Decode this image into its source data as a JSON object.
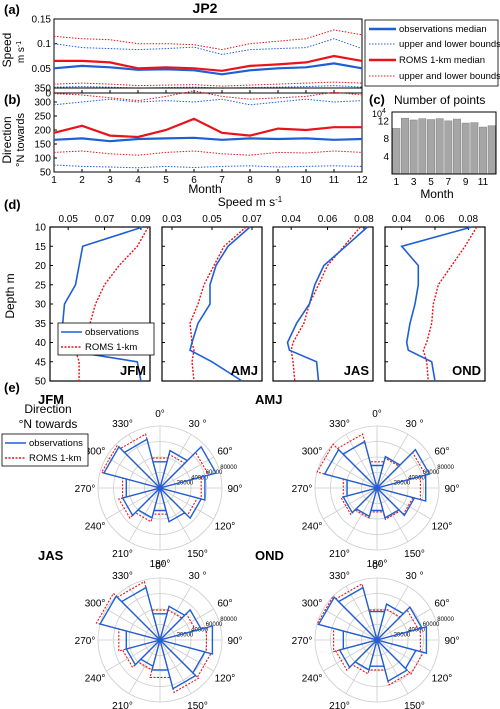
{
  "figure": {
    "title": "JP2",
    "panel_a": {
      "letter": "(a)",
      "ylabel": "Speed",
      "yunit": "m s",
      "yunit_exp": "-1",
      "legend": {
        "obs_median": "observations median",
        "obs_bounds": "upper and lower bounds",
        "roms_median": "ROMS 1-km median",
        "roms_bounds": "upper and lower bounds"
      }
    },
    "panel_b": {
      "letter": "(b)",
      "ylabel": "Direction",
      "ylabel2": "°N towards",
      "xlabel": "Month"
    },
    "panel_c": {
      "letter": "(c)",
      "title": "Number of points",
      "multiplier_base": "10",
      "multiplier_exp": "4",
      "xlabel": "Month"
    },
    "panel_d": {
      "letter": "(d)",
      "title": "Speed m s",
      "title_exp": "-1",
      "ylabel": "Depth m",
      "legend": {
        "obs": "observations",
        "roms": "ROMS 1-km"
      }
    },
    "panel_e": {
      "letter": "(e)",
      "title_line1": "Direction",
      "title_line2": "°N towards",
      "legend": {
        "obs": "observations",
        "roms": "ROMS 1-km"
      }
    }
  },
  "colors": {
    "observations": "#1f5fd6",
    "roms": "#e8141b",
    "bar": "#a6a6a6",
    "grid": "#cccccc"
  },
  "chart_data": [
    {
      "id": "panel-a",
      "type": "line",
      "x": [
        1,
        2,
        3,
        4,
        5,
        6,
        7,
        8,
        9,
        10,
        11,
        12
      ],
      "xlim": [
        1,
        12
      ],
      "ylim": [
        0,
        0.15
      ],
      "yticks": [
        "0",
        "0.05",
        "0.1",
        "0.15"
      ],
      "series": [
        {
          "name": "observations median",
          "style": "solid",
          "color": "#1f5fd6",
          "values": [
            0.05,
            0.055,
            0.052,
            0.047,
            0.048,
            0.046,
            0.038,
            0.046,
            0.05,
            0.052,
            0.06,
            0.05
          ]
        },
        {
          "name": "upper and lower bounds",
          "style": "dotted",
          "color": "#1f5fd6",
          "values": [
            0.1,
            0.092,
            0.09,
            0.088,
            0.09,
            0.093,
            0.078,
            0.088,
            0.09,
            0.092,
            0.11,
            0.09
          ]
        },
        {
          "style": "dotted",
          "color": "#1f5fd6",
          "values": [
            0.012,
            0.013,
            0.012,
            0.01,
            0.011,
            0.012,
            0.01,
            0.011,
            0.012,
            0.013,
            0.015,
            0.012
          ]
        },
        {
          "name": "ROMS 1-km median",
          "style": "solid",
          "color": "#e8141b",
          "values": [
            0.065,
            0.065,
            0.062,
            0.05,
            0.052,
            0.05,
            0.045,
            0.055,
            0.058,
            0.062,
            0.075,
            0.065
          ]
        },
        {
          "name": "upper and lower bounds",
          "style": "dotted",
          "color": "#e8141b",
          "values": [
            0.115,
            0.11,
            0.108,
            0.1,
            0.1,
            0.098,
            0.088,
            0.1,
            0.105,
            0.11,
            0.128,
            0.118
          ]
        },
        {
          "style": "dotted",
          "color": "#e8141b",
          "values": [
            0.018,
            0.02,
            0.018,
            0.015,
            0.016,
            0.017,
            0.014,
            0.016,
            0.018,
            0.02,
            0.022,
            0.02
          ]
        }
      ]
    },
    {
      "id": "panel-b",
      "type": "line",
      "x": [
        1,
        2,
        3,
        4,
        5,
        6,
        7,
        8,
        9,
        10,
        11,
        12
      ],
      "xlim": [
        1,
        12
      ],
      "ylim": [
        50,
        350
      ],
      "yticks": [
        "50",
        "100",
        "150",
        "200",
        "250",
        "300",
        "350"
      ],
      "xticks": [
        "1",
        "2",
        "3",
        "4",
        "5",
        "6",
        "7",
        "8",
        "9",
        "10",
        "11",
        "12"
      ],
      "series": [
        {
          "name": "observations median",
          "style": "solid",
          "color": "#1f5fd6",
          "values": [
            165,
            170,
            160,
            168,
            170,
            172,
            165,
            170,
            168,
            170,
            165,
            168
          ]
        },
        {
          "style": "dotted",
          "color": "#1f5fd6",
          "values": [
            290,
            300,
            310,
            300,
            305,
            300,
            310,
            290,
            300,
            310,
            300,
            305
          ]
        },
        {
          "style": "dotted",
          "color": "#1f5fd6",
          "values": [
            75,
            70,
            68,
            65,
            70,
            66,
            70,
            72,
            68,
            70,
            72,
            70
          ]
        },
        {
          "name": "ROMS 1-km median",
          "style": "solid",
          "color": "#e8141b",
          "values": [
            190,
            215,
            180,
            175,
            200,
            240,
            190,
            180,
            205,
            200,
            210,
            210
          ]
        },
        {
          "style": "dotted",
          "color": "#e8141b",
          "values": [
            330,
            325,
            315,
            305,
            320,
            340,
            320,
            310,
            315,
            320,
            335,
            325
          ]
        },
        {
          "style": "dotted",
          "color": "#e8141b",
          "values": [
            120,
            125,
            115,
            110,
            120,
            125,
            115,
            110,
            120,
            118,
            125,
            120
          ]
        }
      ]
    },
    {
      "id": "panel-c",
      "type": "bar",
      "categories": [
        "1",
        "2",
        "3",
        "4",
        "5",
        "6",
        "7",
        "8",
        "9",
        "10",
        "11",
        "12"
      ],
      "values": [
        10.3,
        12.6,
        12.2,
        12.5,
        12.3,
        12.5,
        12.0,
        12.4,
        11.5,
        11.6,
        10.6,
        10.9
      ],
      "unit_multiplier": 10000,
      "ylim": [
        0,
        14
      ],
      "yticks": [
        "0",
        "4",
        "8",
        "12"
      ],
      "xticks": [
        "1",
        "3",
        "5",
        "7",
        "9",
        "11"
      ]
    },
    {
      "id": "panel-d",
      "type": "line",
      "orientation": "depth-profile",
      "ylim": [
        10,
        50
      ],
      "yticks": [
        "10",
        "15",
        "20",
        "25",
        "30",
        "35",
        "40",
        "45",
        "50"
      ],
      "panels": [
        {
          "label": "JFM",
          "xlim": [
            0.04,
            0.095
          ],
          "xticks": [
            "0.05",
            "0.07",
            "0.09"
          ],
          "depth": [
            10,
            15,
            20,
            25,
            30,
            35,
            40,
            42,
            45,
            50
          ],
          "observations": [
            0.091,
            0.058,
            0.056,
            0.054,
            0.048,
            0.047,
            0.047,
            0.048,
            0.088,
            0.09
          ],
          "roms": [
            0.094,
            0.088,
            0.078,
            0.07,
            0.065,
            0.062,
            0.058,
            0.054,
            0.056,
            0.056
          ]
        },
        {
          "label": "AMJ",
          "xlim": [
            0.025,
            0.075
          ],
          "xticks": [
            "0.03",
            "0.05",
            "0.07"
          ],
          "depth": [
            10,
            15,
            20,
            25,
            30,
            35,
            40,
            42,
            45,
            50
          ],
          "observations": [
            0.069,
            0.058,
            0.052,
            0.049,
            0.049,
            0.043,
            0.04,
            0.039,
            0.05,
            0.065
          ],
          "roms": [
            0.067,
            0.056,
            0.051,
            0.046,
            0.043,
            0.039,
            0.04,
            0.041,
            0.04,
            0.041
          ]
        },
        {
          "label": "JAS",
          "xlim": [
            0.03,
            0.085
          ],
          "xticks": [
            "0.04",
            "0.06",
            "0.08"
          ],
          "depth": [
            10,
            15,
            20,
            25,
            30,
            35,
            40,
            42,
            45,
            50
          ],
          "observations": [
            0.082,
            0.07,
            0.058,
            0.053,
            0.05,
            0.043,
            0.038,
            0.039,
            0.054,
            0.055
          ],
          "roms": [
            0.078,
            0.069,
            0.06,
            0.055,
            0.05,
            0.047,
            0.041,
            0.04,
            0.041,
            0.042
          ]
        },
        {
          "label": "OND",
          "xlim": [
            0.03,
            0.09
          ],
          "xticks": [
            "0.04",
            "0.06",
            "0.08"
          ],
          "depth": [
            10,
            15,
            20,
            25,
            30,
            35,
            40,
            42,
            45,
            50
          ],
          "observations": [
            0.082,
            0.04,
            0.05,
            0.05,
            0.048,
            0.045,
            0.043,
            0.044,
            0.058,
            0.06
          ],
          "roms": [
            0.085,
            0.078,
            0.07,
            0.062,
            0.059,
            0.058,
            0.055,
            0.053,
            0.055,
            0.056
          ]
        }
      ]
    },
    {
      "id": "panel-e",
      "type": "polar",
      "angles": [
        0,
        30,
        60,
        90,
        120,
        150,
        180,
        210,
        240,
        270,
        300,
        330
      ],
      "angle_labels": [
        "0°",
        "30 °",
        "60°",
        "90°",
        "120°",
        "150°",
        "180°",
        "210°",
        "240°",
        "270°",
        "300°",
        "330°"
      ],
      "rlim": [
        0,
        80000
      ],
      "rticks": [
        "20000",
        "40000",
        "60000",
        "80000"
      ],
      "panels": [
        {
          "label": "JFM",
          "observations": [
            35000,
            50000,
            75000,
            60000,
            55000,
            45000,
            30000,
            40000,
            50000,
            45000,
            75000,
            65000
          ],
          "roms": [
            40000,
            45000,
            65000,
            55000,
            50000,
            45000,
            35000,
            45000,
            55000,
            50000,
            78000,
            72000
          ]
        },
        {
          "label": "AMJ",
          "observations": [
            30000,
            42000,
            70000,
            65000,
            50000,
            40000,
            30000,
            38000,
            45000,
            40000,
            70000,
            62000
          ],
          "roms": [
            35000,
            40000,
            65000,
            58000,
            48000,
            42000,
            32000,
            40000,
            48000,
            45000,
            80000,
            72000
          ]
        },
        {
          "label": "JAS",
          "observations": [
            35000,
            45000,
            55000,
            70000,
            60000,
            65000,
            40000,
            35000,
            45000,
            45000,
            80000,
            70000
          ],
          "roms": [
            40000,
            40000,
            48000,
            62000,
            68000,
            70000,
            50000,
            40000,
            50000,
            55000,
            85000,
            78000
          ]
        },
        {
          "label": "OND",
          "observations": [
            38000,
            48000,
            60000,
            66000,
            52000,
            55000,
            35000,
            40000,
            50000,
            45000,
            78000,
            70000
          ],
          "roms": [
            40000,
            42000,
            55000,
            58000,
            62000,
            60000,
            40000,
            45000,
            55000,
            58000,
            80000,
            75000
          ]
        }
      ]
    }
  ]
}
